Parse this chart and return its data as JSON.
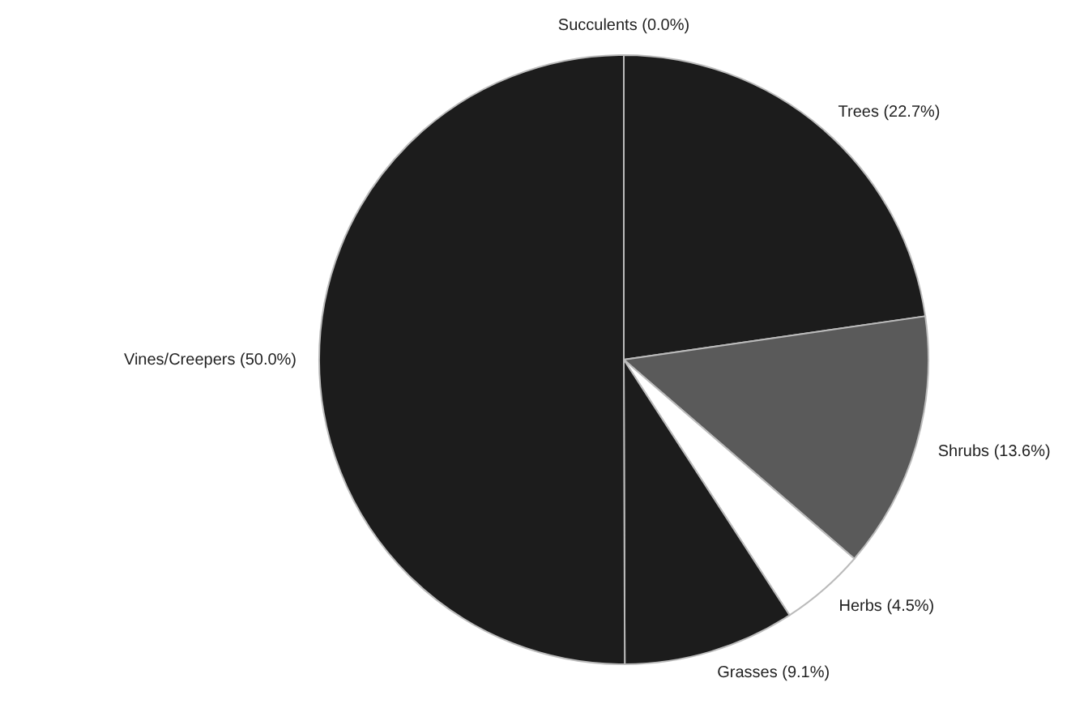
{
  "chart_data": {
    "type": "pie",
    "categories": [
      "Succulents",
      "Trees",
      "Shrubs",
      "Herbs",
      "Grasses",
      "Vines/Creepers"
    ],
    "values": [
      0.0,
      22.7,
      13.6,
      4.5,
      9.1,
      50.0
    ],
    "value_labels": [
      "(0.0%)",
      "(22.7%)",
      "(13.6%)",
      "(4.5%)",
      "(9.1%)",
      "(50.0%)"
    ],
    "colors": [
      "#ffffff",
      "#1c1c1c",
      "#5a5a5a",
      "#ffffff",
      "#1c1c1c",
      "#1c1c1c"
    ]
  }
}
